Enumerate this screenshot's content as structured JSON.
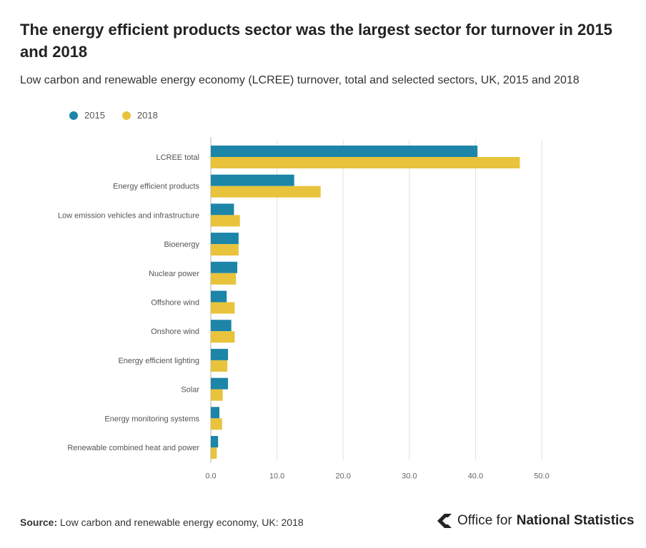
{
  "header": {
    "title": "The energy efficient products sector was the largest sector for turnover in 2015 and 2018",
    "subtitle": "Low carbon and renewable energy economy (LCREE) turnover, total and selected sectors, UK, 2015 and 2018"
  },
  "footer": {
    "source_label": "Source:",
    "source_text": "Low carbon and renewable energy economy, UK: 2018",
    "brand_prefix": "Office for",
    "brand_strong": "National Statistics"
  },
  "colors": {
    "series_2015": "#1c85a8",
    "series_2018": "#e8c33b",
    "grid": "#e2e2e2",
    "axis": "#b0b0b0"
  },
  "chart_data": {
    "type": "bar",
    "orientation": "horizontal",
    "title": "The energy efficient products sector was the largest sector for turnover in 2015 and 2018",
    "subtitle": "Low carbon and renewable energy economy (LCREE) turnover, total and selected sectors, UK, 2015 and 2018",
    "categories": [
      "LCREE total",
      "Energy efficient products",
      "Low emission vehicles and infrastructure",
      "Bioenergy",
      "Nuclear power",
      "Offshore wind",
      "Onshore wind",
      "Energy efficient lighting",
      "Solar",
      "Energy monitoring systems",
      "Renewable combined heat and power"
    ],
    "series": [
      {
        "name": "2015",
        "color": "#1c85a8",
        "values": [
          40.3,
          12.6,
          3.5,
          4.2,
          4.0,
          2.4,
          3.1,
          2.6,
          2.6,
          1.3,
          1.1
        ]
      },
      {
        "name": "2018",
        "color": "#e8c33b",
        "values": [
          46.7,
          16.6,
          4.4,
          4.2,
          3.8,
          3.6,
          3.6,
          2.5,
          1.8,
          1.7,
          0.9
        ]
      }
    ],
    "xlim": [
      0,
      50
    ],
    "xticks": [
      "0.0",
      "10.0",
      "20.0",
      "30.0",
      "40.0",
      "50.0"
    ],
    "xtick_values": [
      0,
      10,
      20,
      30,
      40,
      50
    ],
    "grid": true,
    "legend_position": "top-left"
  }
}
